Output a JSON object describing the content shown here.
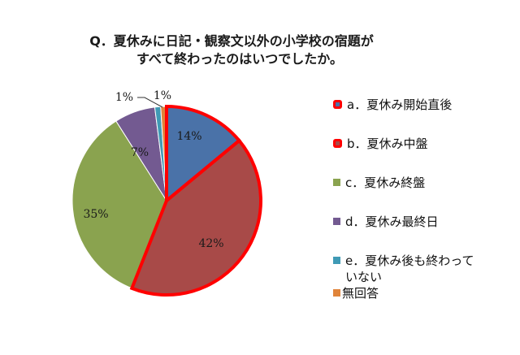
{
  "title": {
    "line1": "Q．夏休みに日記・観察文以外の小学校の宿題が",
    "line2": "すべて終わったのはいつでしたか。"
  },
  "chart_data": {
    "type": "pie",
    "title": "Q．夏休みに日記・観察文以外の小学校の宿題がすべて終わったのはいつでしたか。",
    "start_angle_deg": 0,
    "direction": "clockwise",
    "legend_position": "right",
    "slices": [
      {
        "label": "a．夏休み開始直後",
        "value": 14,
        "display": "14%",
        "color": "#4a72a8",
        "highlighted": true
      },
      {
        "label": "b．夏休み中盤",
        "value": 42,
        "display": "42%",
        "color": "#a84a48",
        "highlighted": true
      },
      {
        "label": "c．夏休み終盤",
        "value": 35,
        "display": "35%",
        "color": "#8aa34f",
        "highlighted": false
      },
      {
        "label": "d．夏休み最終日",
        "value": 7,
        "display": "7%",
        "color": "#735a91",
        "highlighted": false
      },
      {
        "label": "e．夏休み後も終わっていない",
        "value": 1,
        "display": "1%",
        "color": "#3f9ab5",
        "highlighted": false
      },
      {
        "label": "無回答",
        "value": 1,
        "display": "1%",
        "color": "#e0843a",
        "highlighted": false
      }
    ],
    "highlight_color": "#ff0000"
  },
  "legend": {
    "items": [
      {
        "label": "a．夏休み開始直後"
      },
      {
        "label": "b．夏休み中盤"
      },
      {
        "label": "c．夏休み終盤"
      },
      {
        "label": "d．夏休み最終日"
      },
      {
        "label": "e．夏休み後も終わって",
        "continuation": "いない"
      },
      {
        "label": "無回答"
      }
    ]
  }
}
